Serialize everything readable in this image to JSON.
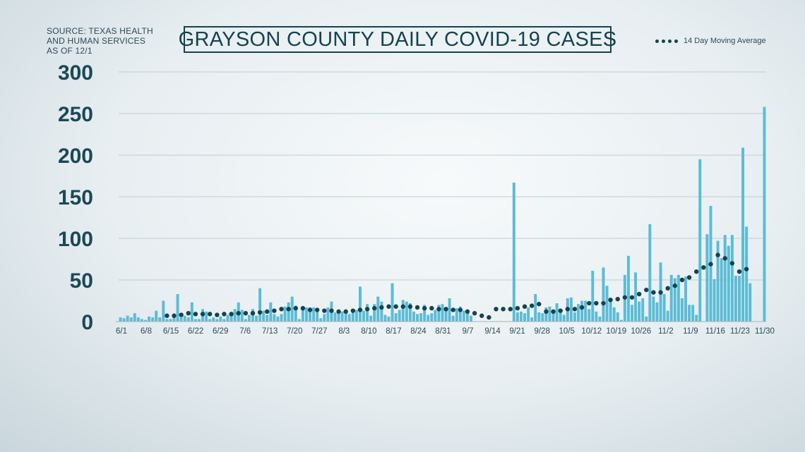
{
  "source_lines": [
    "SOURCE: TEXAS HEALTH",
    "AND HUMAN SERVICES",
    "AS OF 12/1"
  ],
  "chart_data": {
    "type": "bar",
    "title": "GRAYSON COUNTY DAILY COVID-19 CASES",
    "xlabel": "",
    "ylabel": "",
    "ylim": [
      0,
      300
    ],
    "yticks": [
      0,
      50,
      100,
      150,
      200,
      250,
      300
    ],
    "grid": true,
    "legend_position": "top-right",
    "bar_color": "#5bbcd6",
    "line_color": "#16424f",
    "x_tick_labels": [
      "6/1",
      "6/8",
      "6/15",
      "6/22",
      "6/29",
      "7/6",
      "7/13",
      "7/20",
      "7/27",
      "8/3",
      "8/10",
      "8/17",
      "8/24",
      "8/31",
      "9/7",
      "9/14",
      "9/21",
      "9/28",
      "10/5",
      "10/12",
      "10/19",
      "10/26",
      "11/2",
      "11/9",
      "11/16",
      "11/23",
      "11/30"
    ],
    "x_start_label": "6/1",
    "x_end_label": "11/30",
    "series": [
      {
        "type": "bar",
        "values": [
          5,
          4,
          7,
          5,
          10,
          5,
          3,
          2,
          6,
          5,
          13,
          5,
          25,
          3,
          3,
          5,
          33,
          5,
          7,
          5,
          23,
          3,
          3,
          15,
          12,
          3,
          5,
          3,
          6,
          3,
          8,
          9,
          15,
          23,
          14,
          3,
          8,
          15,
          7,
          40,
          13,
          8,
          23,
          9,
          6,
          9,
          18,
          23,
          30,
          19,
          3,
          17,
          17,
          17,
          17,
          15,
          4,
          9,
          17,
          24,
          11,
          10,
          12,
          14,
          9,
          11,
          14,
          42,
          13,
          21,
          7,
          21,
          30,
          24,
          8,
          6,
          46,
          10,
          14,
          26,
          24,
          22,
          12,
          9,
          10,
          20,
          8,
          10,
          14,
          20,
          21,
          15,
          28,
          7,
          16,
          18,
          13,
          10,
          7,
          0,
          0,
          0,
          0,
          0,
          0,
          0,
          0,
          0,
          0,
          0,
          167,
          11,
          12,
          10,
          17,
          5,
          33,
          11,
          10,
          17,
          18,
          13,
          22,
          11,
          8,
          28,
          29,
          11,
          21,
          25,
          25,
          15,
          61,
          12,
          6,
          65,
          43,
          28,
          17,
          11,
          2,
          56,
          79,
          20,
          59,
          24,
          28,
          6,
          117,
          30,
          23,
          71,
          33,
          13,
          56,
          52,
          56,
          28,
          54,
          20,
          20,
          8,
          195,
          0,
          105,
          139,
          51,
          97,
          76,
          104,
          91,
          104,
          55,
          55,
          209,
          114,
          46,
          0,
          0,
          0,
          258
        ]
      },
      {
        "type": "line",
        "style": "dotted",
        "name": "14 Day Moving Average",
        "values": [
          null,
          null,
          null,
          null,
          null,
          null,
          null,
          null,
          null,
          null,
          null,
          null,
          null,
          7,
          null,
          7,
          null,
          8,
          null,
          10,
          null,
          9,
          null,
          9,
          null,
          9,
          null,
          8,
          null,
          9,
          null,
          9,
          null,
          10,
          null,
          10,
          null,
          10,
          null,
          11,
          null,
          12,
          null,
          13,
          null,
          15,
          null,
          15,
          null,
          16,
          null,
          16,
          null,
          14,
          null,
          14,
          null,
          13,
          null,
          13,
          null,
          12,
          null,
          12,
          null,
          13,
          null,
          14,
          null,
          15,
          null,
          16,
          null,
          17,
          null,
          18,
          null,
          18,
          null,
          18,
          null,
          18,
          null,
          17,
          null,
          16,
          null,
          16,
          null,
          15,
          null,
          15,
          null,
          14,
          null,
          14,
          null,
          12,
          null,
          10,
          null,
          7,
          null,
          5,
          null,
          15,
          null,
          15,
          null,
          15,
          null,
          16,
          null,
          18,
          null,
          19,
          null,
          21,
          null,
          12,
          null,
          12,
          null,
          13,
          null,
          15,
          null,
          15,
          null,
          17,
          null,
          22,
          null,
          22,
          null,
          22,
          null,
          26,
          null,
          27,
          null,
          29,
          null,
          29,
          null,
          33,
          null,
          38,
          null,
          35,
          null,
          35,
          null,
          40,
          null,
          43,
          null,
          50,
          null,
          53,
          null,
          60,
          null,
          65,
          null,
          69,
          null,
          80,
          null,
          76,
          null,
          70,
          null,
          60,
          null,
          63
        ]
      }
    ]
  }
}
